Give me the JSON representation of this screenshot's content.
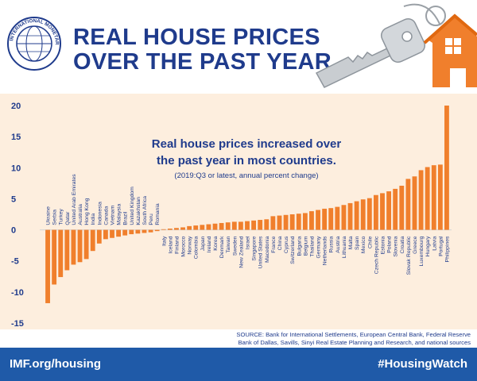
{
  "header": {
    "title_line1": "REAL HOUSE PRICES",
    "title_line2": "OVER THE PAST YEAR",
    "logo_text": "INTERNATIONAL MONETARY FUND",
    "colors": {
      "title": "#1f3b8c",
      "accent": "#f07f2c",
      "band": "#fdeede"
    }
  },
  "chart_data": {
    "type": "bar",
    "annotation_line1": "Real house prices increased over",
    "annotation_line2": "the past year in most countries.",
    "annotation_note": "(2019:Q3 or latest, annual percent change)",
    "ylim": [
      -15,
      20
    ],
    "yticks": [
      20,
      15,
      10,
      5,
      0,
      -5,
      -10,
      -15
    ],
    "categories": [
      "Ukraine",
      "Serbia",
      "Turkey",
      "Qatar",
      "United Arab Emirates",
      "Australia",
      "Hong Kong",
      "India",
      "Indonesia",
      "Canada",
      "Vietnam",
      "Malaysia",
      "Brazil",
      "United Kingdom",
      "Kazakhstan",
      "South Africa",
      "Peru",
      "Romania",
      "Italy",
      "Iceland",
      "Finland",
      "Morocco",
      "Norway",
      "Colombia",
      "Japan",
      "Ireland",
      "Korea",
      "Denmark",
      "Taiwan",
      "Sweden",
      "New Zealand",
      "Israel",
      "Singapore",
      "United States",
      "Macedonia",
      "France",
      "China",
      "Cyprus",
      "Switzerland",
      "Bulgaria",
      "Belgium",
      "Thailand",
      "Germany",
      "Netherlands",
      "Russia",
      "Austria",
      "Lithuania",
      "Malta",
      "Spain",
      "Mexico",
      "Chile",
      "Czech Republic",
      "Estonia",
      "Poland",
      "Slovenia",
      "Croatia",
      "Slovak Republic",
      "Greece",
      "Luxembourg",
      "Hungary",
      "Latvia",
      "Portugal",
      "Philippines"
    ],
    "values": [
      -11.8,
      -8.8,
      -7.6,
      -6.5,
      -5.6,
      -5.2,
      -4.7,
      -3.4,
      -2.2,
      -1.5,
      -1.3,
      -1.1,
      -0.9,
      -0.7,
      -0.6,
      -0.5,
      -0.4,
      -0.2,
      0.1,
      0.2,
      0.3,
      0.4,
      0.6,
      0.7,
      0.8,
      0.9,
      1.0,
      1.1,
      1.2,
      1.3,
      1.3,
      1.4,
      1.5,
      1.6,
      1.7,
      2.2,
      2.3,
      2.4,
      2.5,
      2.6,
      2.7,
      3.0,
      3.2,
      3.4,
      3.5,
      3.7,
      4.0,
      4.3,
      4.6,
      4.9,
      5.1,
      5.6,
      5.9,
      6.2,
      6.6,
      7.1,
      8.2,
      8.6,
      9.6,
      10.1,
      10.4,
      10.5,
      20.0
    ],
    "bar_color": "#f07f2c",
    "grid": false,
    "source_line1": "SOURCE: Bank for International Settlements, European Central Bank, Federal Reserve",
    "source_line2": "Bank of Dallas, Savills, Sinyi Real Estate Planning and Research, and national sources"
  },
  "footer": {
    "left_link": "IMF.org/housing",
    "right_tag": "#HousingWatch"
  }
}
